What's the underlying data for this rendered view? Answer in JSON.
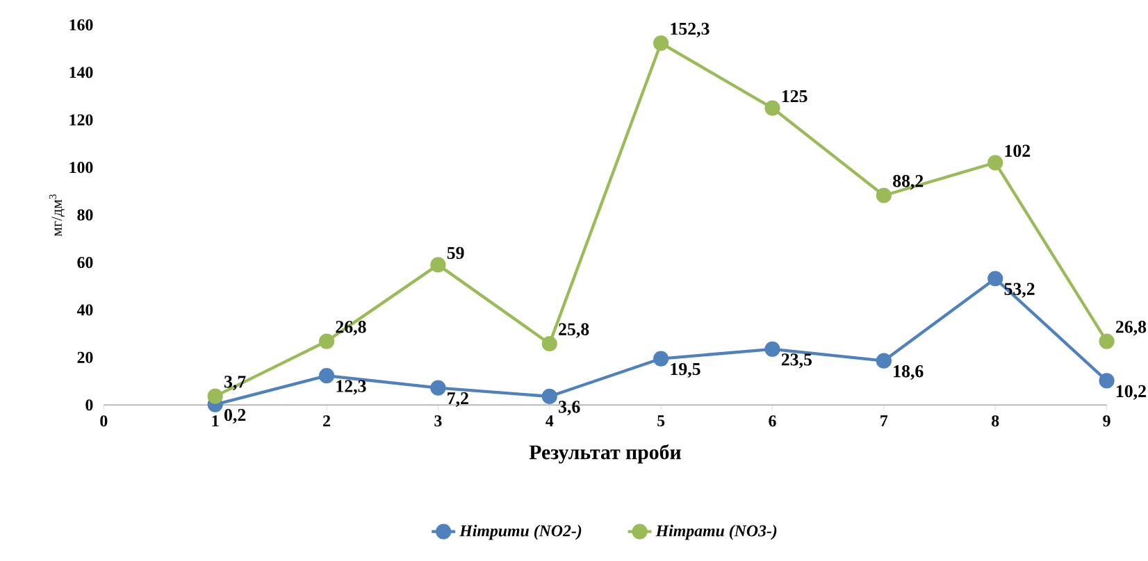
{
  "chart_data": {
    "type": "line",
    "xlabel": "Результат проби",
    "ylabel": "мг/дм$^{3}$",
    "x": [
      1,
      2,
      3,
      4,
      5,
      6,
      7,
      8,
      9
    ],
    "series": [
      {
        "name": "Нітрити (NO2-)",
        "color": "#4f81bd",
        "values": [
          0.2,
          12.3,
          7.2,
          3.6,
          19.5,
          23.5,
          18.6,
          53.2,
          10.2
        ],
        "value_labels": [
          "0,2",
          "12,3",
          "7,2",
          "3,6",
          "19,5",
          "23,5",
          "18,6",
          "53,2",
          "10,2"
        ]
      },
      {
        "name": "Нітрати (NO3-)",
        "color": "#9bbb59",
        "values": [
          3.7,
          26.8,
          59,
          25.8,
          152.3,
          125,
          88.2,
          102,
          26.8
        ],
        "value_labels": [
          "3,7",
          "26,8",
          "59",
          "25,8",
          "152,3",
          "125",
          "88,2",
          "102",
          "26,8"
        ]
      }
    ],
    "xlim": [
      0,
      9
    ],
    "xticks": [
      0,
      1,
      2,
      3,
      4,
      5,
      6,
      7,
      8,
      9
    ],
    "ylim": [
      0,
      160
    ],
    "yticks": [
      0,
      20,
      40,
      60,
      80,
      100,
      120,
      140,
      160
    ],
    "grid": false,
    "legend": "bottom",
    "marker": "circle",
    "line_style": "solid"
  }
}
